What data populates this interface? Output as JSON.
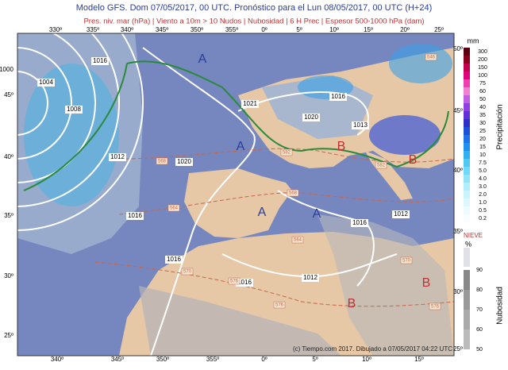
{
  "header": {
    "title": "Modelo GFS. Dom 07/05/2017, 00 UTC. Pronóstico para el Lun 08/05/2017, 00 UTC (H+24)",
    "subtitle": "Pres. niv. mar (hPa) | Viento a 10m > 10 Nudos | Nubosidad | 6 H Prec | Espesor 500-1000 hPa (dam)"
  },
  "map": {
    "top_lon_labels": [
      "330º",
      "335º",
      "340º",
      "345º",
      "350º",
      "355º",
      "0º",
      "5º",
      "10º",
      "15º",
      "20º",
      "25º"
    ],
    "bottom_lon_labels": [
      "340º",
      "345º",
      "350º",
      "355º",
      "0º",
      "5º",
      "10º",
      "15º"
    ],
    "left_lat_labels": [
      "45º",
      "40º",
      "35º",
      "30º",
      "25º"
    ],
    "right_lat_labels": [
      "50º",
      "45º",
      "40º",
      "35º",
      "30º",
      "25º"
    ],
    "isobar_labels": [
      "1000",
      "1016",
      "1004",
      "1008",
      "1012",
      "1016",
      "1021",
      "1020",
      "1016",
      "1020",
      "1013",
      "1012",
      "1016",
      "1016",
      "1016",
      "1012"
    ],
    "pressure_centers": [
      "A",
      "A",
      "A",
      "A",
      "B",
      "B",
      "B",
      "B"
    ],
    "thickness_labels": [
      "582",
      "568",
      "564",
      "568",
      "564",
      "570",
      "576",
      "570",
      "576",
      "576",
      "582",
      "546"
    ],
    "credit": "(c) Tiempo.com 2017. Dibujado a 07/05/2017 04:22 UTC"
  },
  "precip_legend": {
    "unit": "mm",
    "labels": [
      "300",
      "200",
      "150",
      "100",
      "75",
      "60",
      "50",
      "40",
      "35",
      "30",
      "25",
      "20",
      "15",
      "10",
      "7.5",
      "5.0",
      "4.0",
      "3.0",
      "2.0",
      "1.0",
      "0.5",
      "0.2"
    ],
    "title": "Precipitación"
  },
  "cloud_legend": {
    "snow": "NIEVE",
    "unit": "%",
    "labels": [
      "90",
      "80",
      "70",
      "60",
      "50"
    ],
    "title": "Nubosidad"
  }
}
